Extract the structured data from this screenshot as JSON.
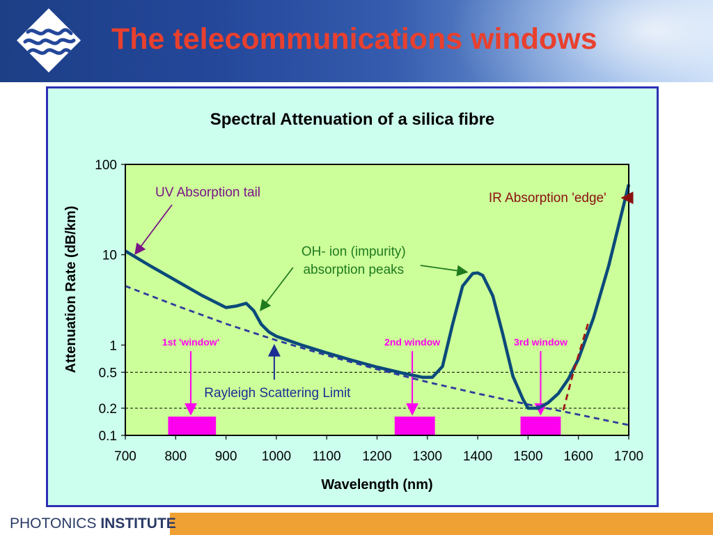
{
  "slide": {
    "title": "The telecommunications windows",
    "footer_brand_light": "PHOTONICS",
    "footer_brand_bold": "INSTITUTE",
    "logo_icon": "photonics-institute-wave-logo",
    "colors": {
      "title": "#e8402e",
      "frame_border": "#2d2fb3",
      "footer_bar": "#efa133"
    }
  },
  "chart_data": {
    "type": "line",
    "title": "Spectral Attenuation of a silica fibre",
    "xlabel": "Wavelength (nm)",
    "ylabel": "Attenuation Rate (dB/km)",
    "xlim": [
      700,
      1700
    ],
    "ylim": [
      0.1,
      100
    ],
    "yscale": "log",
    "x_ticks": [
      700,
      800,
      900,
      1000,
      1100,
      1200,
      1300,
      1400,
      1500,
      1600,
      1700
    ],
    "y_ticks": [
      0.1,
      0.2,
      0.5,
      1,
      10,
      100
    ],
    "y_tick_labels": [
      "0.1",
      "0.2",
      "0.5",
      "1",
      "10",
      "100"
    ],
    "reference_lines_y": [
      0.5,
      0.2
    ],
    "colors": {
      "outer_background": "#ccffee",
      "plot_background": "#ccff99",
      "main_curve": "#0b4a7a",
      "rayleigh": "#2f3a9e",
      "ir_edge": "#a01818",
      "windows": "#ff00ee",
      "uv_label": "#7a1487",
      "oh_label": "#1f7a1f",
      "ir_label": "#8a1010",
      "rayleigh_label": "#1c2e93"
    },
    "series": [
      {
        "role": "total-attenuation",
        "style": "solid",
        "x": [
          700,
          750,
          800,
          850,
          900,
          920,
          940,
          955,
          970,
          985,
          1000,
          1050,
          1100,
          1150,
          1200,
          1250,
          1290,
          1310,
          1330,
          1350,
          1370,
          1390,
          1400,
          1410,
          1430,
          1450,
          1470,
          1490,
          1500,
          1520,
          1540,
          1560,
          1580,
          1600,
          1630,
          1660,
          1700
        ],
        "y": [
          11,
          7.5,
          5.2,
          3.6,
          2.6,
          2.7,
          2.9,
          2.4,
          1.7,
          1.4,
          1.25,
          1.0,
          0.82,
          0.68,
          0.57,
          0.49,
          0.44,
          0.44,
          0.58,
          1.7,
          4.5,
          6.2,
          6.3,
          5.9,
          3.5,
          1.3,
          0.45,
          0.25,
          0.2,
          0.2,
          0.23,
          0.29,
          0.42,
          0.7,
          2.0,
          7.5,
          60
        ]
      },
      {
        "name": "Rayleigh Scattering Limit",
        "role": "rayleigh",
        "style": "dashed",
        "x": [
          700,
          800,
          900,
          1000,
          1100,
          1200,
          1300,
          1400,
          1500,
          1600,
          1700
        ],
        "y": [
          4.5,
          2.75,
          1.72,
          1.13,
          0.77,
          0.54,
          0.39,
          0.29,
          0.22,
          0.17,
          0.13
        ]
      },
      {
        "name": "IR Absorption 'edge'",
        "role": "ir-edge",
        "style": "dashed",
        "x": [
          1570,
          1590,
          1620
        ],
        "y": [
          0.19,
          0.5,
          1.8
        ]
      }
    ],
    "windows": [
      {
        "label": "1st 'window'",
        "x_from": 785,
        "x_to": 880,
        "marker_x": 830
      },
      {
        "label": "2nd window",
        "x_from": 1235,
        "x_to": 1315,
        "marker_x": 1270
      },
      {
        "label": "3rd window",
        "x_from": 1485,
        "x_to": 1565,
        "marker_x": 1525
      }
    ],
    "annotations": [
      {
        "key": "uv",
        "text_lines": [
          "UV Absorption tail"
        ],
        "text_x": 700,
        "text_y": 45,
        "point_x": 725,
        "point_y": 10
      },
      {
        "key": "oh",
        "text_lines": [
          "OH- ion (impurity)",
          "absorption peaks"
        ],
        "text_x": 1040,
        "text_y": 8.3,
        "point_left_x": 960,
        "point_left_y": 2.6,
        "point_right_x": 1390,
        "point_right_y": 6.2
      },
      {
        "key": "ir",
        "text_lines": [
          "IR Absorption 'edge'"
        ],
        "text_x": 1390,
        "text_y": 36,
        "point_x": 1670,
        "point_y": 36
      },
      {
        "key": "rayleigh",
        "text_lines": [
          "Rayleigh Scattering Limit"
        ],
        "text_x": 800,
        "text_y": 0.3,
        "point_x": 1000,
        "point_y": 1.05
      }
    ]
  }
}
